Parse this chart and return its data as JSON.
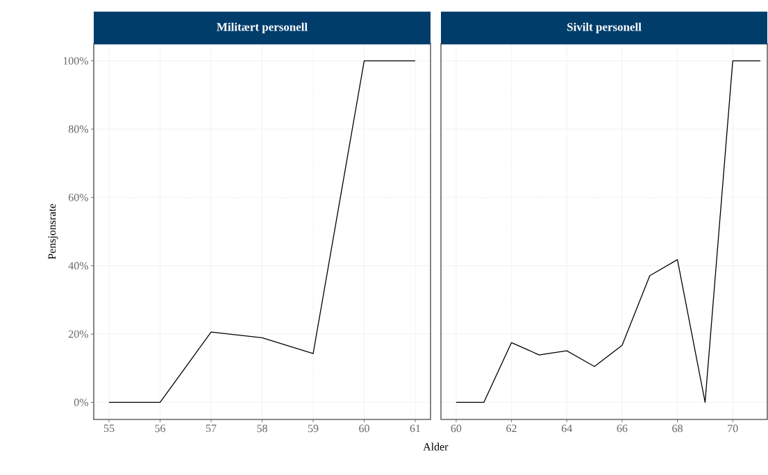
{
  "chart_data": [
    {
      "type": "line",
      "title": "Militært personell",
      "xlabel": "Alder",
      "ylabel": "Pensjonsrate",
      "x": [
        55,
        56,
        57,
        58,
        59,
        60,
        61
      ],
      "values": [
        0,
        0,
        20.6,
        18.9,
        14.3,
        100,
        100
      ],
      "color": "#000000",
      "xlim": [
        54.7,
        61.3
      ],
      "ylim": [
        -5,
        105
      ],
      "xticks": [
        55,
        56,
        57,
        58,
        59,
        60,
        61
      ],
      "yticks": [
        {
          "value": 0,
          "label": "0%"
        },
        {
          "value": 20,
          "label": "20%"
        },
        {
          "value": 40,
          "label": "40%"
        },
        {
          "value": 60,
          "label": "60%"
        },
        {
          "value": 80,
          "label": "80%"
        },
        {
          "value": 100,
          "label": "100%"
        }
      ],
      "grid": true
    },
    {
      "type": "line",
      "title": "Sivilt personell",
      "x": [
        60,
        61,
        62,
        63,
        64,
        65,
        66,
        67,
        68,
        69,
        70,
        71
      ],
      "values": [
        0,
        0,
        17.5,
        13.9,
        15.1,
        10.5,
        16.7,
        37.1,
        41.8,
        0,
        100,
        100
      ],
      "color": "#000000",
      "xlim": [
        59.45,
        71.25
      ],
      "ylim": [
        -5,
        105
      ],
      "xticks": [
        60,
        62,
        64,
        66,
        68,
        70
      ],
      "yticks": [
        {
          "value": 0,
          "label": null
        },
        {
          "value": 20,
          "label": null
        },
        {
          "value": 40,
          "label": null
        },
        {
          "value": 60,
          "label": null
        },
        {
          "value": 80,
          "label": null
        },
        {
          "value": 100,
          "label": null
        }
      ],
      "grid": true,
      "tick_labels": "x"
    }
  ]
}
